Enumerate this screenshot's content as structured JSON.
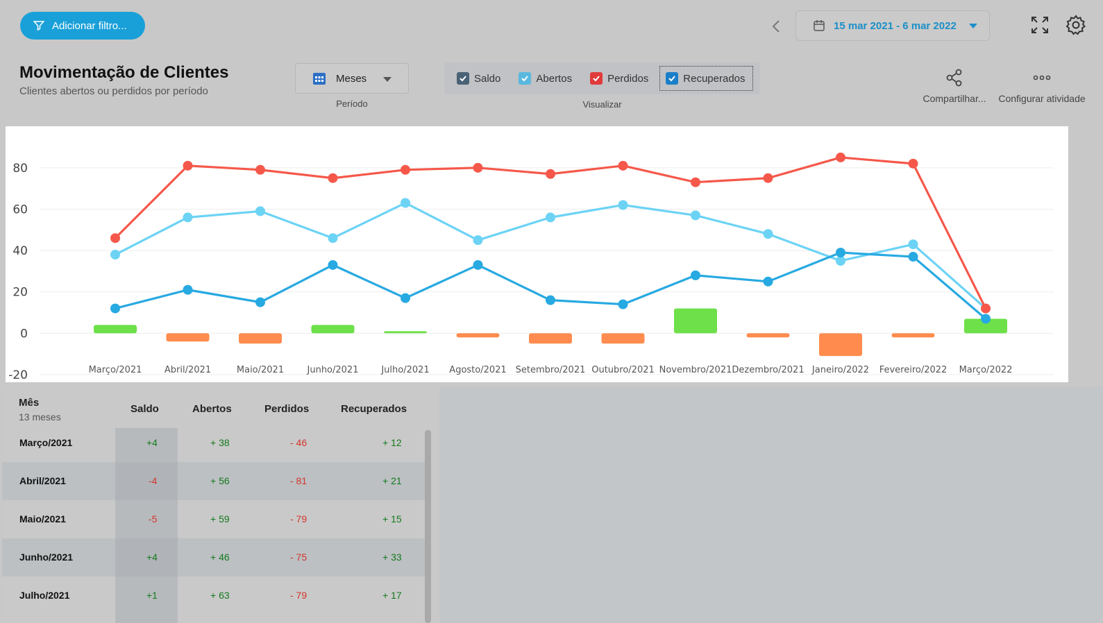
{
  "toolbar": {
    "filter_label": "Adicionar filtro...",
    "date_range": "15 mar 2021 - 6 mar 2022",
    "prev_icon": "chevron-left-icon",
    "calendar_icon": "calendar-icon",
    "expand_icon": "expand-icon",
    "settings_icon": "gear-icon"
  },
  "header": {
    "title": "Movimentação de Clientes",
    "subtitle": "Clientes abertos ou perdidos por período"
  },
  "period": {
    "value": "Meses",
    "label": "Período"
  },
  "visualize": {
    "label": "Visualizar",
    "items": [
      {
        "label": "Saldo",
        "color": "#4a6275",
        "checked": true
      },
      {
        "label": "Abertos",
        "color": "#5ab8de",
        "checked": true
      },
      {
        "label": "Perdidos",
        "color": "#e03a3a",
        "checked": true
      },
      {
        "label": "Recuperados",
        "color": "#1a7fc8",
        "checked": true
      }
    ]
  },
  "actions": {
    "share_label": "Compartilhar...",
    "configure_label": "Configurar atividade"
  },
  "colors": {
    "perdidos": "#f5584a",
    "abertos": "#6cd3f5",
    "recuperados": "#27a9e1",
    "saldo_pos": "#6ee04a",
    "saldo_neg": "#ff8c4e"
  },
  "chart_data": {
    "type": "line",
    "categories": [
      "Março/2021",
      "Abril/2021",
      "Maio/2021",
      "Junho/2021",
      "Julho/2021",
      "Agosto/2021",
      "Setembro/2021",
      "Outubro/2021",
      "Novembro/2021",
      "Dezembro/2021",
      "Janeiro/2022",
      "Fevereiro/2022",
      "Março/2022"
    ],
    "ylim": [
      -20,
      90
    ],
    "yticks": [
      -20,
      0,
      20,
      40,
      60,
      80
    ],
    "grid": true,
    "series": [
      {
        "name": "Perdidos",
        "type": "line",
        "values": [
          46,
          81,
          79,
          75,
          79,
          80,
          77,
          81,
          73,
          75,
          85,
          82,
          12
        ]
      },
      {
        "name": "Abertos",
        "type": "line",
        "values": [
          38,
          56,
          59,
          46,
          63,
          45,
          56,
          62,
          57,
          48,
          35,
          43,
          12
        ]
      },
      {
        "name": "Recuperados",
        "type": "line",
        "values": [
          12,
          21,
          15,
          33,
          17,
          33,
          16,
          14,
          28,
          25,
          39,
          37,
          7
        ]
      },
      {
        "name": "Saldo",
        "type": "bar",
        "values": [
          4,
          -4,
          -5,
          4,
          1,
          -2,
          -5,
          -5,
          12,
          -2,
          -11,
          -2,
          7
        ]
      }
    ]
  },
  "table": {
    "headers": {
      "month": "Mês",
      "month_sub": "13 meses",
      "saldo": "Saldo",
      "abertos": "Abertos",
      "perdidos": "Perdidos",
      "recuperados": "Recuperados"
    },
    "rows": [
      {
        "month": "Março/2021",
        "saldo": "+4",
        "abertos": "+ 38",
        "perdidos": "- 46",
        "recuperados": "+ 12"
      },
      {
        "month": "Abril/2021",
        "saldo": "-4",
        "abertos": "+ 56",
        "perdidos": "- 81",
        "recuperados": "+ 21"
      },
      {
        "month": "Maio/2021",
        "saldo": "-5",
        "abertos": "+ 59",
        "perdidos": "- 79",
        "recuperados": "+ 15"
      },
      {
        "month": "Junho/2021",
        "saldo": "+4",
        "abertos": "+ 46",
        "perdidos": "- 75",
        "recuperados": "+ 33"
      },
      {
        "month": "Julho/2021",
        "saldo": "+1",
        "abertos": "+ 63",
        "perdidos": "- 79",
        "recuperados": "+ 17"
      }
    ]
  }
}
